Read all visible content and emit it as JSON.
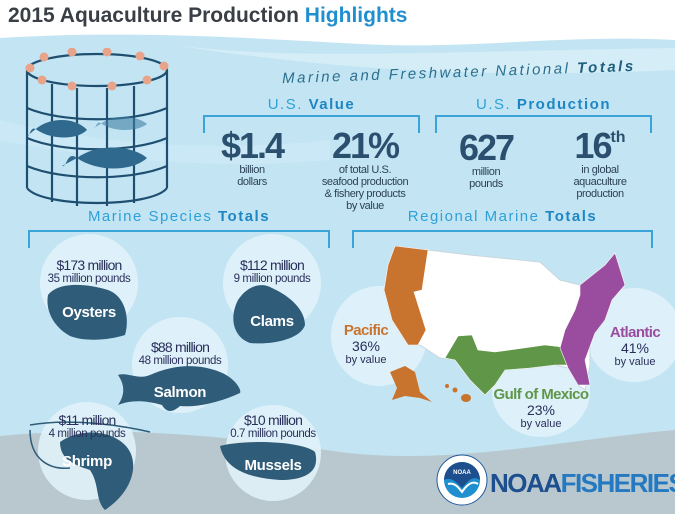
{
  "title": {
    "prefix": "2015 Aquaculture Production",
    "highlight": "Highlights"
  },
  "national": {
    "prefix": "Marine and Freshwater National",
    "bold": "Totals"
  },
  "value": {
    "heading_prefix": "U.S.",
    "heading_bold": "Value",
    "stats": [
      {
        "number": "$1.4",
        "caption": [
          "billion",
          "dollars"
        ]
      },
      {
        "number": "21%",
        "caption": [
          "of total U.S.",
          "seafood production",
          "& fishery products",
          "by value"
        ]
      }
    ]
  },
  "production": {
    "heading_prefix": "U.S.",
    "heading_bold": "Production",
    "stats": [
      {
        "number": "627",
        "caption": [
          "million",
          "pounds"
        ]
      },
      {
        "number": "16",
        "suffix": "th",
        "caption": [
          "in global",
          "aquaculture",
          "production"
        ]
      }
    ]
  },
  "species": {
    "heading_prefix": "Marine Species",
    "heading_bold": "Totals",
    "items": [
      {
        "name": "Oysters",
        "value": "$173 million",
        "pounds": "35 million pounds"
      },
      {
        "name": "Clams",
        "value": "$112 million",
        "pounds": "9 million pounds"
      },
      {
        "name": "Salmon",
        "value": "$88 million",
        "pounds": "48 million pounds"
      },
      {
        "name": "Shrimp",
        "value": "$11 million",
        "pounds": "4 million pounds"
      },
      {
        "name": "Mussels",
        "value": "$10 million",
        "pounds": "0.7 million pounds"
      }
    ]
  },
  "regional": {
    "heading_prefix": "Regional Marine",
    "heading_bold": "Totals",
    "items": [
      {
        "name": "Pacific",
        "percent": "36%",
        "note": "by value",
        "color": "#c9742e"
      },
      {
        "name": "Atlantic",
        "percent": "41%",
        "note": "by value",
        "color": "#9a4d9e"
      },
      {
        "name": "Gulf of Mexico",
        "percent": "23%",
        "note": "by value",
        "color": "#5f9648"
      }
    ]
  },
  "logo": {
    "seal_text": "NOAA",
    "name_a": "NOAA",
    "name_b": "FISHERIES"
  },
  "colors": {
    "accent": "#2fa0d8",
    "dark_shape": "#2f5c78",
    "background": "#c3e5f3",
    "ground": "#b9c7cf"
  }
}
